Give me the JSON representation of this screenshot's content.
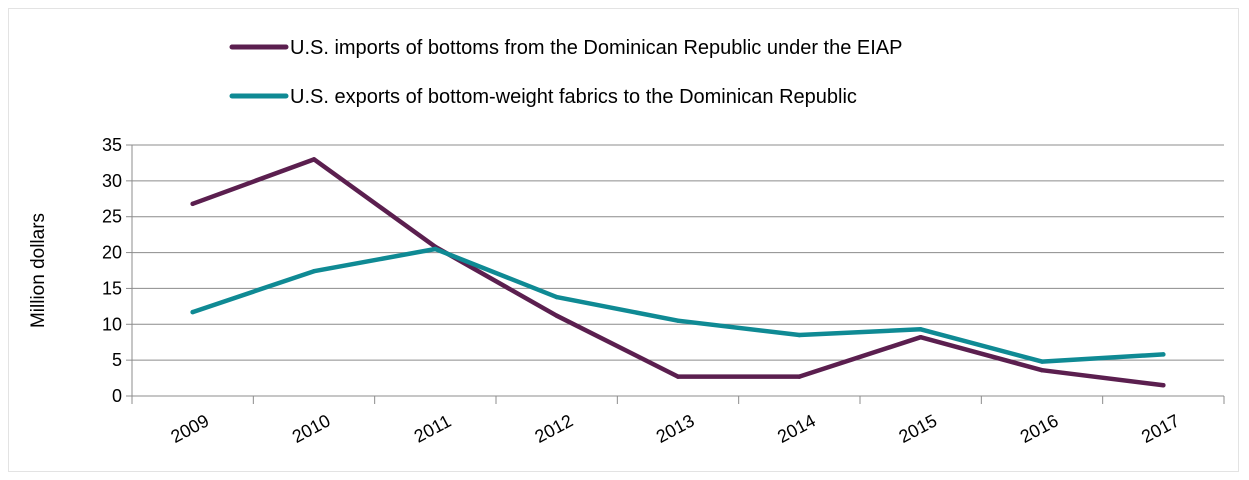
{
  "chart_data": {
    "type": "line",
    "title": "",
    "xlabel": "",
    "ylabel": "Million dollars",
    "ylim": [
      0,
      35
    ],
    "yticks": [
      0,
      5,
      10,
      15,
      20,
      25,
      30,
      35
    ],
    "categories": [
      "2009",
      "2010",
      "2011",
      "2012",
      "2013",
      "2014",
      "2015",
      "2016",
      "2017"
    ],
    "grid": true,
    "legend_position": "top",
    "series": [
      {
        "name": "U.S. imports of bottoms from the Dominican Republic under the EIAP",
        "color": "#5b1f4f",
        "values": [
          26.8,
          33.0,
          20.8,
          11.2,
          2.7,
          2.7,
          8.2,
          3.6,
          1.5
        ]
      },
      {
        "name": "U.S. exports of bottom-weight fabrics to the Dominican Republic",
        "color": "#0f8a94",
        "values": [
          11.7,
          17.4,
          20.5,
          13.8,
          10.5,
          8.5,
          9.3,
          4.8,
          5.8
        ]
      }
    ]
  }
}
